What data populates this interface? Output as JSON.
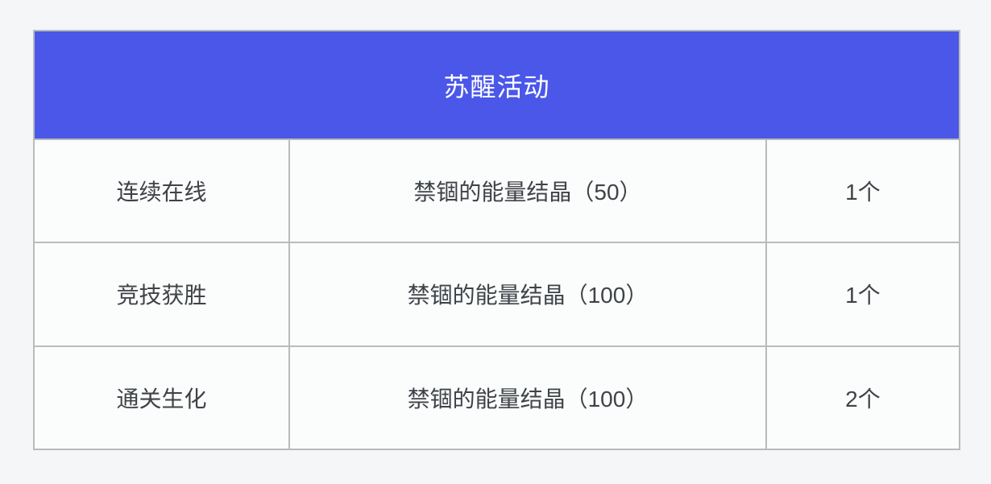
{
  "page": {
    "background_color": "#f5f6f7"
  },
  "table": {
    "title": "苏醒活动",
    "header_bg_color": "#4a57e8",
    "header_text_color": "#ffffff",
    "border_color": "#b9bcbc",
    "cell_bg_color": "#fbfcfc",
    "text_color": "#3f4347",
    "rows": [
      {
        "task": "连续在线",
        "reward": "禁锢的能量结晶（50）",
        "count": "1个"
      },
      {
        "task": "竞技获胜",
        "reward": "禁锢的能量结晶（100）",
        "count": "1个"
      },
      {
        "task": "通关生化",
        "reward": "禁锢的能量结晶（100）",
        "count": "2个"
      }
    ]
  }
}
